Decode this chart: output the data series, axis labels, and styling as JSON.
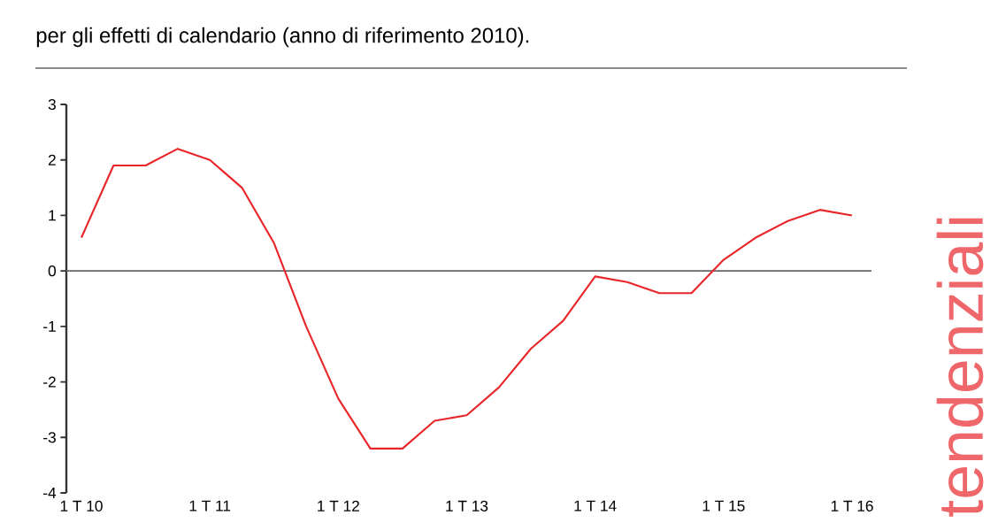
{
  "chart_data": {
    "type": "line",
    "title": "per gli effetti di calendario (anno di riferimento 2010).",
    "categories": [
      "1 T 10",
      null,
      null,
      null,
      "1 T 11",
      null,
      null,
      null,
      "1 T 12",
      null,
      null,
      null,
      "1 T 13",
      null,
      null,
      null,
      "1 T 14",
      null,
      null,
      null,
      "1 T 15",
      null,
      null,
      null,
      "1 T 16"
    ],
    "series": [
      {
        "color": "#e8262a",
        "values": [
          0.6,
          1.9,
          1.9,
          2.2,
          2.0,
          1.5,
          0.5,
          -1.0,
          -2.3,
          -3.2,
          -3.2,
          -2.7,
          -2.6,
          -2.1,
          -1.4,
          -0.9,
          -0.1,
          -0.2,
          -0.4,
          -0.4,
          0.2,
          0.6,
          0.9,
          1.1,
          1.0
        ]
      }
    ],
    "ylim": [
      -4,
      3
    ],
    "yticks": [
      -4,
      -3,
      -2,
      -1,
      0,
      1,
      2,
      3
    ],
    "ref_lines": [
      {
        "axis": "y",
        "value": 0,
        "color": "#666666"
      }
    ],
    "annotations": [
      "tendenziali"
    ],
    "grid": false
  }
}
